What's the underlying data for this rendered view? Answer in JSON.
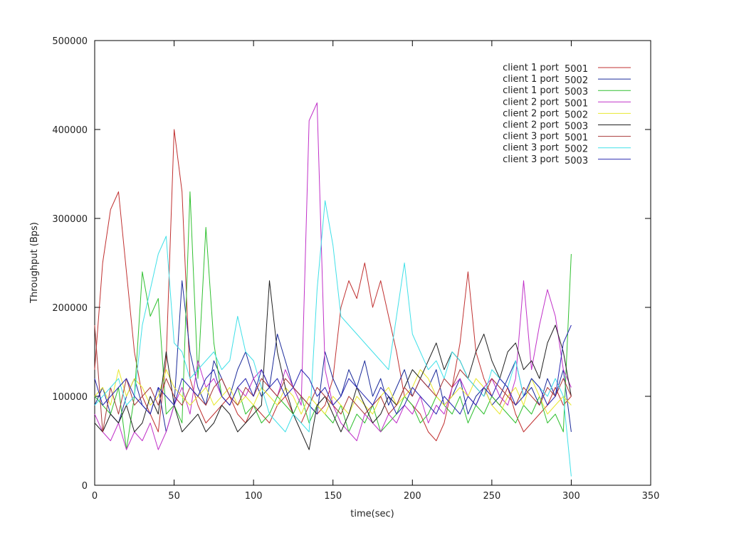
{
  "chart_data": {
    "type": "line",
    "title": "",
    "xlabel": "time(sec)",
    "ylabel": "Throughput (Bps)",
    "xlim": [
      0,
      350
    ],
    "ylim": [
      0,
      500000
    ],
    "x_ticks": [
      0,
      50,
      100,
      150,
      200,
      250,
      300,
      350
    ],
    "y_ticks": [
      0,
      100000,
      200000,
      300000,
      400000,
      500000
    ],
    "x_tick_labels": [
      "0",
      "50",
      "100",
      "150",
      "200",
      "250",
      "300",
      "350"
    ],
    "y_tick_labels": [
      "0",
      "100000",
      "200000",
      "300000",
      "400000",
      "500000"
    ],
    "grid": false,
    "legend_position": "top-right",
    "x": [
      0,
      5,
      10,
      15,
      20,
      25,
      30,
      35,
      40,
      45,
      50,
      55,
      60,
      65,
      70,
      75,
      80,
      85,
      90,
      95,
      100,
      105,
      110,
      115,
      120,
      125,
      130,
      135,
      140,
      145,
      150,
      155,
      160,
      165,
      170,
      175,
      180,
      185,
      190,
      195,
      200,
      205,
      210,
      215,
      220,
      225,
      230,
      235,
      240,
      245,
      250,
      255,
      260,
      265,
      270,
      275,
      280,
      285,
      290,
      295,
      300
    ],
    "series": [
      {
        "name": "client 1 port",
        "port": "5001",
        "color": "#c03030",
        "values": [
          130000,
          250000,
          310000,
          330000,
          240000,
          150000,
          100000,
          80000,
          60000,
          140000,
          400000,
          330000,
          120000,
          90000,
          70000,
          80000,
          90000,
          100000,
          80000,
          70000,
          90000,
          80000,
          70000,
          90000,
          100000,
          80000,
          70000,
          90000,
          80000,
          90000,
          120000,
          200000,
          230000,
          210000,
          250000,
          200000,
          230000,
          190000,
          150000,
          100000,
          90000,
          80000,
          60000,
          50000,
          70000,
          110000,
          160000,
          240000,
          150000,
          120000,
          100000,
          90000,
          110000,
          80000,
          60000,
          70000,
          80000,
          90000,
          110000,
          90000,
          100000
        ]
      },
      {
        "name": "client 1 port",
        "port": "5002",
        "color": "#1a2a9a",
        "values": [
          90000,
          110000,
          80000,
          70000,
          100000,
          120000,
          90000,
          80000,
          110000,
          60000,
          90000,
          230000,
          150000,
          110000,
          90000,
          140000,
          120000,
          100000,
          130000,
          150000,
          120000,
          100000,
          110000,
          170000,
          140000,
          110000,
          100000,
          90000,
          80000,
          150000,
          120000,
          100000,
          130000,
          110000,
          140000,
          100000,
          120000,
          90000,
          110000,
          130000,
          100000,
          120000,
          110000,
          130000,
          90000,
          100000,
          120000,
          80000,
          100000,
          110000,
          90000,
          100000,
          120000,
          140000,
          100000,
          110000,
          90000,
          120000,
          100000,
          130000,
          60000
        ]
      },
      {
        "name": "client 1 port",
        "port": "5003",
        "color": "#30c030",
        "values": [
          100000,
          90000,
          80000,
          110000,
          40000,
          100000,
          240000,
          190000,
          210000,
          80000,
          90000,
          70000,
          330000,
          120000,
          290000,
          160000,
          100000,
          90000,
          110000,
          80000,
          90000,
          70000,
          80000,
          100000,
          90000,
          80000,
          100000,
          70000,
          90000,
          80000,
          70000,
          90000,
          60000,
          80000,
          70000,
          90000,
          60000,
          70000,
          80000,
          100000,
          90000,
          70000,
          80000,
          100000,
          90000,
          80000,
          100000,
          70000,
          90000,
          80000,
          100000,
          90000,
          80000,
          70000,
          90000,
          80000,
          100000,
          70000,
          80000,
          60000,
          260000
        ]
      },
      {
        "name": "client 2 port",
        "port": "5001",
        "color": "#c030c8",
        "values": [
          80000,
          60000,
          50000,
          70000,
          40000,
          60000,
          50000,
          70000,
          40000,
          60000,
          90000,
          110000,
          80000,
          140000,
          110000,
          120000,
          100000,
          90000,
          110000,
          100000,
          120000,
          130000,
          110000,
          100000,
          130000,
          110000,
          90000,
          410000,
          430000,
          130000,
          90000,
          70000,
          60000,
          50000,
          80000,
          70000,
          60000,
          80000,
          70000,
          90000,
          80000,
          100000,
          70000,
          90000,
          80000,
          110000,
          120000,
          100000,
          90000,
          110000,
          120000,
          100000,
          90000,
          120000,
          230000,
          130000,
          180000,
          220000,
          190000,
          130000,
          110000
        ]
      },
      {
        "name": "client 2 port",
        "port": "5002",
        "color": "#e8e830",
        "values": [
          100000,
          110000,
          90000,
          130000,
          100000,
          120000,
          110000,
          90000,
          100000,
          130000,
          110000,
          100000,
          90000,
          100000,
          110000,
          90000,
          100000,
          110000,
          90000,
          100000,
          90000,
          110000,
          100000,
          90000,
          110000,
          100000,
          80000,
          100000,
          90000,
          80000,
          100000,
          90000,
          80000,
          100000,
          90000,
          80000,
          100000,
          110000,
          90000,
          100000,
          110000,
          130000,
          120000,
          100000,
          90000,
          100000,
          110000,
          100000,
          120000,
          110000,
          90000,
          80000,
          100000,
          110000,
          90000,
          120000,
          100000,
          80000,
          90000,
          100000,
          90000
        ]
      },
      {
        "name": "client 2 port",
        "port": "5003",
        "color": "#202020",
        "values": [
          70000,
          60000,
          80000,
          70000,
          90000,
          60000,
          70000,
          100000,
          80000,
          150000,
          90000,
          60000,
          70000,
          80000,
          60000,
          70000,
          90000,
          80000,
          60000,
          70000,
          80000,
          90000,
          230000,
          150000,
          110000,
          80000,
          60000,
          40000,
          90000,
          100000,
          80000,
          60000,
          80000,
          110000,
          90000,
          70000,
          80000,
          100000,
          90000,
          110000,
          130000,
          120000,
          140000,
          160000,
          130000,
          150000,
          140000,
          120000,
          150000,
          170000,
          140000,
          120000,
          150000,
          160000,
          130000,
          140000,
          120000,
          160000,
          180000,
          150000,
          100000
        ]
      },
      {
        "name": "client 3 port",
        "port": "5001",
        "color": "#a83838",
        "values": [
          180000,
          60000,
          110000,
          80000,
          120000,
          90000,
          100000,
          110000,
          90000,
          120000,
          100000,
          90000,
          110000,
          100000,
          90000,
          110000,
          120000,
          100000,
          90000,
          110000,
          100000,
          120000,
          110000,
          100000,
          120000,
          110000,
          100000,
          90000,
          110000,
          100000,
          90000,
          80000,
          100000,
          90000,
          80000,
          90000,
          100000,
          80000,
          90000,
          110000,
          100000,
          120000,
          110000,
          100000,
          120000,
          110000,
          130000,
          120000,
          110000,
          100000,
          120000,
          110000,
          100000,
          90000,
          110000,
          100000,
          90000,
          110000,
          100000,
          120000,
          100000
        ]
      },
      {
        "name": "client 3 port",
        "port": "5002",
        "color": "#40e0e8",
        "values": [
          90000,
          100000,
          110000,
          120000,
          90000,
          100000,
          180000,
          220000,
          260000,
          280000,
          160000,
          150000,
          120000,
          130000,
          140000,
          150000,
          130000,
          140000,
          190000,
          150000,
          140000,
          110000,
          80000,
          70000,
          60000,
          80000,
          70000,
          60000,
          220000,
          320000,
          270000,
          190000,
          180000,
          170000,
          160000,
          150000,
          140000,
          130000,
          190000,
          250000,
          170000,
          150000,
          130000,
          140000,
          120000,
          150000,
          140000,
          120000,
          110000,
          100000,
          130000,
          120000,
          110000,
          140000,
          100000,
          120000,
          110000,
          100000,
          120000,
          100000,
          10000
        ]
      },
      {
        "name": "client 3 port",
        "port": "5003",
        "color": "#2828b0",
        "values": [
          120000,
          90000,
          100000,
          110000,
          120000,
          100000,
          90000,
          80000,
          110000,
          100000,
          90000,
          120000,
          110000,
          100000,
          120000,
          130000,
          100000,
          90000,
          110000,
          120000,
          100000,
          130000,
          110000,
          120000,
          100000,
          110000,
          130000,
          120000,
          100000,
          110000,
          90000,
          100000,
          120000,
          110000,
          100000,
          90000,
          110000,
          100000,
          80000,
          90000,
          110000,
          100000,
          90000,
          80000,
          100000,
          90000,
          80000,
          100000,
          90000,
          110000,
          100000,
          120000,
          110000,
          90000,
          100000,
          120000,
          110000,
          90000,
          100000,
          160000,
          180000
        ]
      }
    ]
  }
}
